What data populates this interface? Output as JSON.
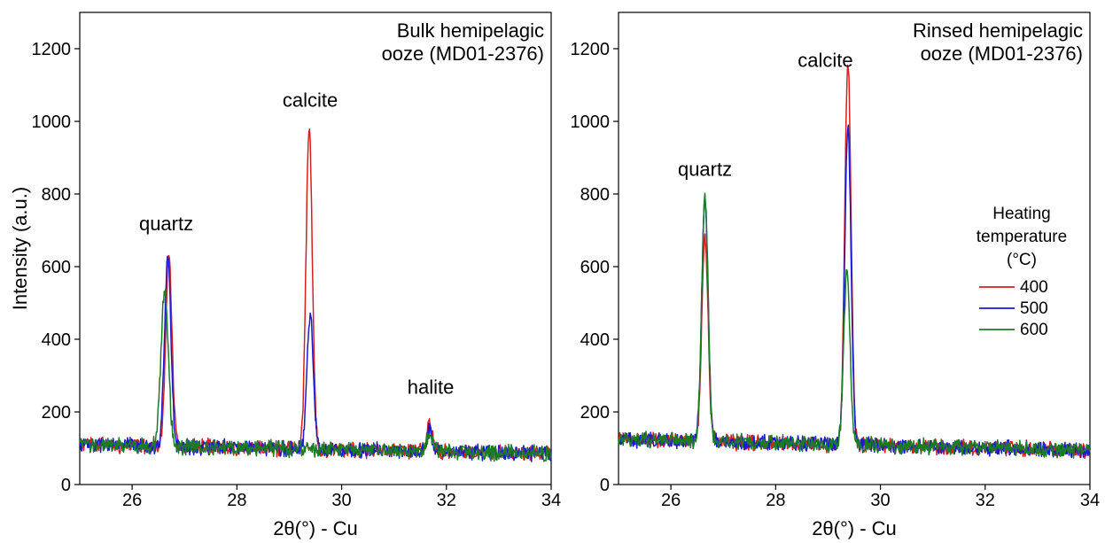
{
  "chart_data": [
    {
      "type": "line",
      "panel_text": [
        "Bulk hemipelagic",
        "ooze (MD01-2376)"
      ],
      "xlabel": "2θ(°) - Cu",
      "ylabel": "Intensity (a.u.)",
      "xlim": [
        25,
        34
      ],
      "ylim": [
        0,
        1300
      ],
      "xticks": [
        26,
        28,
        30,
        32,
        34
      ],
      "yticks": [
        0,
        200,
        400,
        600,
        800,
        1000,
        1200
      ],
      "annotations": [
        {
          "text": "quartz",
          "x": 26.65,
          "y": 700
        },
        {
          "text": "calcite",
          "x": 29.4,
          "y": 1040
        },
        {
          "text": "halite",
          "x": 31.7,
          "y": 250
        }
      ],
      "baseline": 110,
      "baseline_end": 85,
      "series": [
        {
          "name": "400",
          "color": "#d62020",
          "peaks": [
            {
              "x": 26.7,
              "h": 630,
              "w": 0.06
            },
            {
              "x": 29.38,
              "h": 1000,
              "w": 0.06
            },
            {
              "x": 31.68,
              "h": 195,
              "w": 0.05
            }
          ]
        },
        {
          "name": "500",
          "color": "#1a1ad0",
          "peaks": [
            {
              "x": 26.68,
              "h": 635,
              "w": 0.06
            },
            {
              "x": 29.4,
              "h": 485,
              "w": 0.06
            },
            {
              "x": 31.68,
              "h": 170,
              "w": 0.05
            }
          ]
        },
        {
          "name": "600",
          "color": "#1e7a26",
          "peaks": [
            {
              "x": 26.62,
              "h": 540,
              "w": 0.07
            },
            {
              "x": 31.68,
              "h": 160,
              "w": 0.05
            }
          ]
        }
      ]
    },
    {
      "type": "line",
      "panel_text": [
        "Rinsed hemipelagic",
        "ooze (MD01-2376)"
      ],
      "xlabel": "2θ(°) - Cu",
      "ylabel": "",
      "xlim": [
        25,
        34
      ],
      "ylim": [
        0,
        1300
      ],
      "xticks": [
        26,
        28,
        30,
        32,
        34
      ],
      "yticks": [
        0,
        200,
        400,
        600,
        800,
        1000,
        1200
      ],
      "annotations": [
        {
          "text": "quartz",
          "x": 26.65,
          "y": 850
        },
        {
          "text": "calcite",
          "x": 28.95,
          "y": 1150
        }
      ],
      "legend": {
        "title_lines": [
          "Heating",
          "temperature",
          "(°C)"
        ],
        "placement": "right"
      },
      "baseline": 125,
      "baseline_end": 95,
      "series": [
        {
          "name": "400",
          "color": "#d62020",
          "peaks": [
            {
              "x": 26.65,
              "h": 690,
              "w": 0.06
            },
            {
              "x": 29.38,
              "h": 1175,
              "w": 0.06
            }
          ]
        },
        {
          "name": "500",
          "color": "#1a1ad0",
          "peaks": [
            {
              "x": 26.65,
              "h": 805,
              "w": 0.06
            },
            {
              "x": 29.38,
              "h": 990,
              "w": 0.06
            }
          ]
        },
        {
          "name": "600",
          "color": "#1e7a26",
          "peaks": [
            {
              "x": 26.65,
              "h": 800,
              "w": 0.06
            },
            {
              "x": 29.36,
              "h": 595,
              "w": 0.06
            }
          ]
        }
      ]
    }
  ]
}
